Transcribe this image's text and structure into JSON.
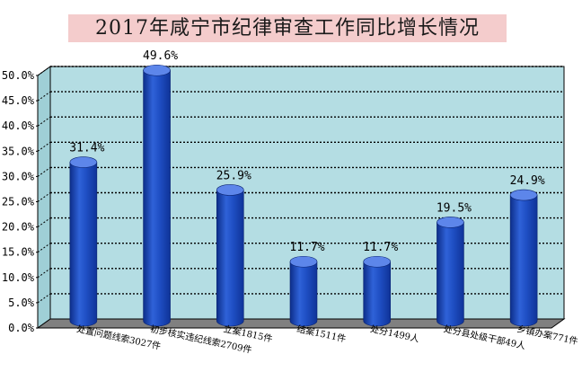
{
  "chart_data": {
    "type": "bar",
    "title": "2017年咸宁市纪律审查工作同比增长情况",
    "categories": [
      "处置问题线索3027件",
      "初步核实违纪线索2709件",
      "立案1815件",
      "结案1511件",
      "处分1499人",
      "处分县处级干部49人",
      "乡镇办案771件"
    ],
    "values": [
      31.4,
      49.6,
      25.9,
      11.7,
      11.7,
      19.5,
      24.9
    ],
    "value_labels": [
      "31.4%",
      "49.6%",
      "25.9%",
      "11.7%",
      "11.7%",
      "19.5%",
      "24.9%"
    ],
    "ylim": [
      0,
      50
    ],
    "y_ticks": [
      0,
      5,
      10,
      15,
      20,
      25,
      30,
      35,
      40,
      45,
      50
    ],
    "y_tick_labels": [
      "0.0%",
      "5.0%",
      "10.0%",
      "15.0%",
      "20.0%",
      "25.0%",
      "30.0%",
      "35.0%",
      "40.0%",
      "45.0%",
      "50.0%"
    ],
    "xlabel": "",
    "ylabel": "",
    "grid": true,
    "legend": "none",
    "colors": {
      "bar": "#1f4fc4",
      "bar_dark": "#10308a",
      "bar_light": "#5d86ea",
      "plot_bg": "#b4dde3",
      "floor": "#808080",
      "title_bg": "#f4cccc"
    }
  }
}
